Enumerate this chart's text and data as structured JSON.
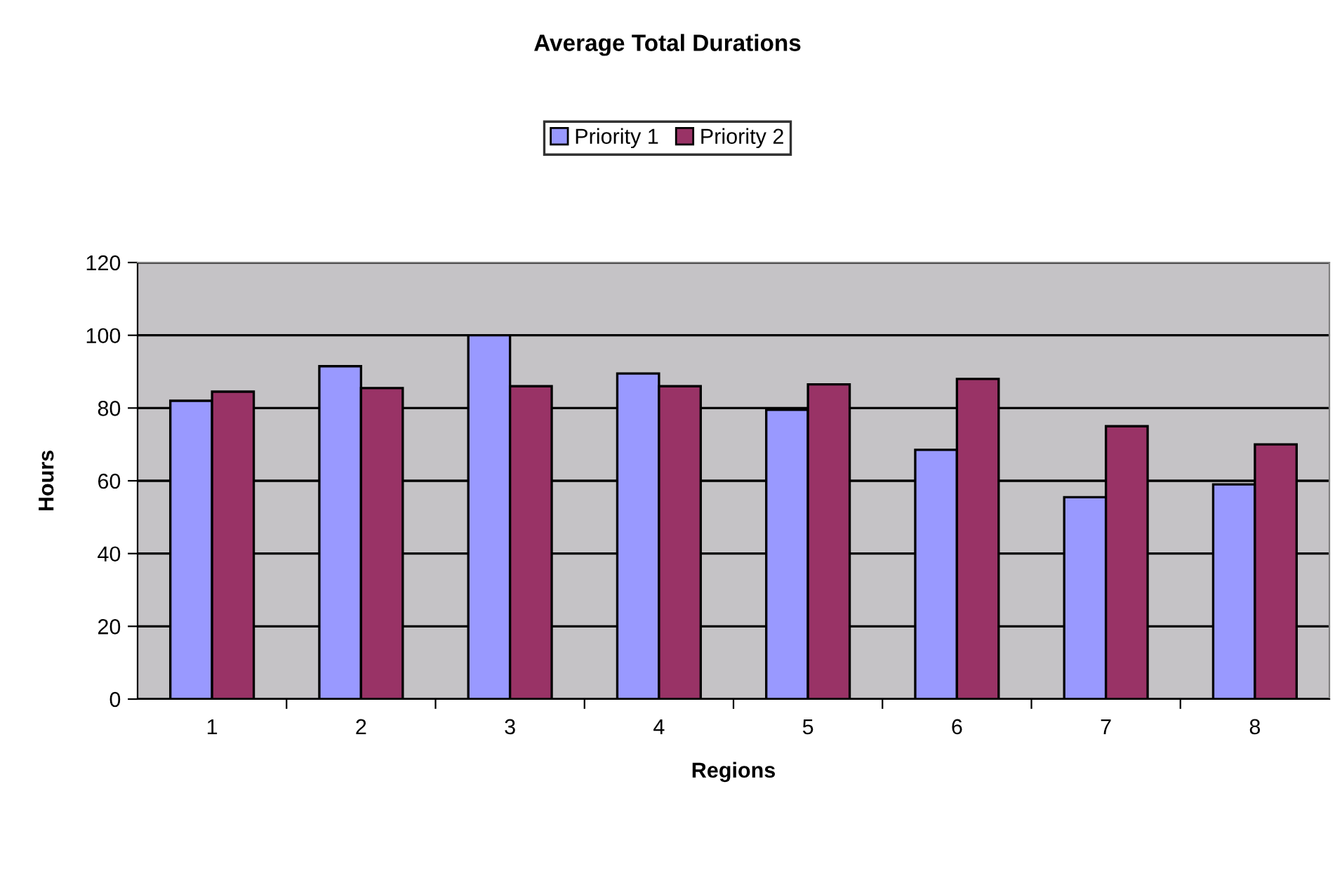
{
  "chart_data": {
    "type": "bar",
    "title": "Average Total Durations",
    "xlabel": "Regions",
    "ylabel": "Hours",
    "categories": [
      "1",
      "2",
      "3",
      "4",
      "5",
      "6",
      "7",
      "8"
    ],
    "series": [
      {
        "name": "Priority 1",
        "color": "#9999ff",
        "values": [
          82,
          91.5,
          100,
          89.5,
          79.5,
          68.5,
          55.5,
          59
        ]
      },
      {
        "name": "Priority 2",
        "color": "#993366",
        "values": [
          84.5,
          85.5,
          86,
          86,
          86.5,
          88,
          75,
          70
        ]
      }
    ],
    "ylim": [
      0,
      120
    ],
    "yticks": [
      0,
      20,
      40,
      60,
      80,
      100,
      120
    ],
    "grid": "y",
    "legend": "top"
  }
}
